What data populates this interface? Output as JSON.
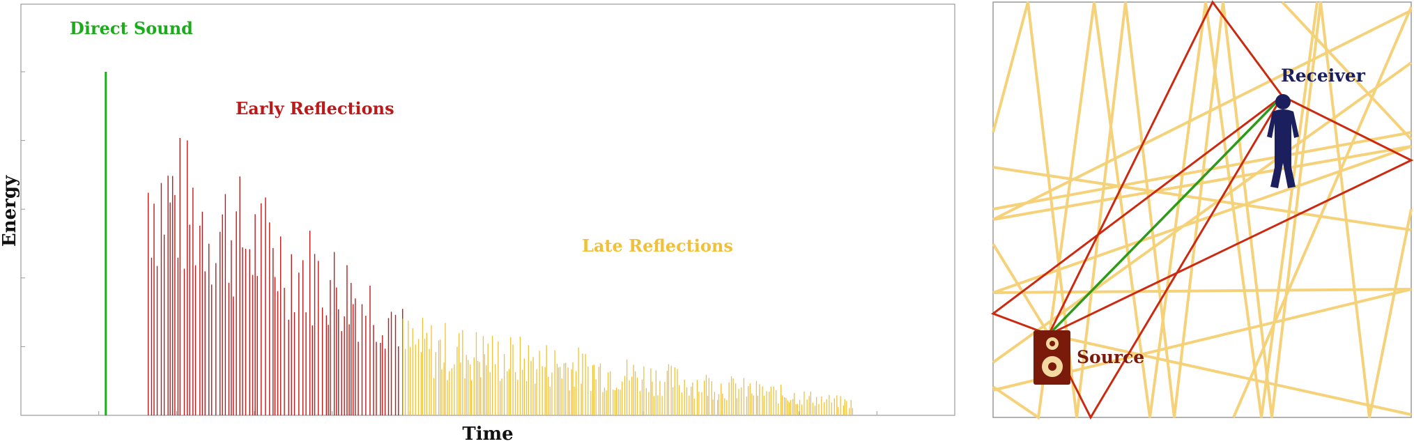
{
  "colors": {
    "direct": "#1aac1a",
    "early": "#bb1a1a",
    "late": "#f2c038",
    "late_ray": "#f5d27a",
    "receiver": "#1b1f5e",
    "source": "#7a1a0a",
    "axis": "#999999"
  },
  "chart_data": {
    "type": "bar",
    "title": "",
    "xlabel": "Time",
    "ylabel": "Energy",
    "ylim": [
      0,
      100
    ],
    "x_ticks": 12,
    "y_ticks": 5,
    "grid": false,
    "direct_sound": {
      "time": 1.0,
      "energy": 100
    },
    "early_reflections": {
      "time_start": 1.5,
      "time_end": 4.5,
      "energy_start": 90,
      "energy_end": 38
    },
    "late_reflections": {
      "time_start": 4.5,
      "time_end": 9.8,
      "energy_start": 30,
      "energy_end": 5
    },
    "xlim": [
      0,
      11
    ]
  },
  "labels": {
    "direct": "Direct Sound",
    "early": "Early Reflections",
    "late": "Late Reflections",
    "energy": "Energy",
    "time": "Time",
    "receiver": "Receiver",
    "source": "Source"
  },
  "room": {
    "receiver_icon": "person-icon",
    "source_icon": "speaker-icon"
  }
}
